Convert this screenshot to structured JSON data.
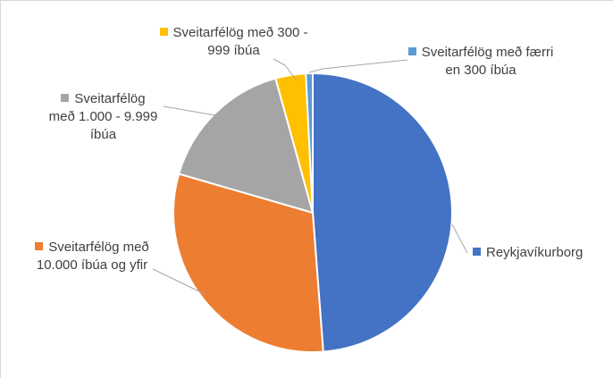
{
  "chart_data": {
    "type": "pie",
    "title": "",
    "legend": "none",
    "slices": [
      {
        "label": "Reykjavíkurborg",
        "value": 48.8,
        "color": "#4472c4"
      },
      {
        "label": "Sveitarfélög með 10.000 íbúa og yfir",
        "value": 30.7,
        "color": "#ed7d31"
      },
      {
        "label": "Sveitarfélög með 1.000 - 9.999 íbúa",
        "value": 16.2,
        "color": "#a5a5a5"
      },
      {
        "label": "Sveitarfélög með 300 - 999 íbúa",
        "value": 3.5,
        "color": "#ffc000"
      },
      {
        "label": "Sveitarfélög með færri en 300 íbúa",
        "value": 0.8,
        "color": "#5b9bd5"
      }
    ]
  }
}
